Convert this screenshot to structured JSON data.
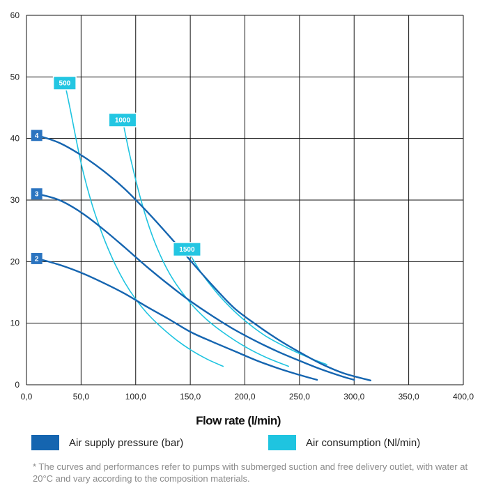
{
  "chart_data": {
    "type": "line",
    "title": "",
    "xlabel": "Flow rate (l/min)",
    "ylabel": "",
    "xlim": [
      0,
      400
    ],
    "ylim": [
      0,
      60
    ],
    "x_ticks": [
      0,
      50,
      100,
      150,
      200,
      250,
      300,
      350,
      400
    ],
    "x_tick_labels": [
      "0,0",
      "50,0",
      "100,0",
      "150,0",
      "200,0",
      "250,0",
      "300,0",
      "350,0",
      "400,0"
    ],
    "y_ticks": [
      0,
      10,
      20,
      30,
      40,
      50,
      60
    ],
    "y_tick_labels": [
      "0",
      "10",
      "20",
      "30",
      "40",
      "50",
      "60"
    ],
    "grid": true,
    "series": [
      {
        "name": "Air supply pressure 2 bar",
        "group": "pressure",
        "tag": "2",
        "color": "#1565b0",
        "x": [
          10,
          30,
          50,
          70,
          90,
          110,
          130,
          150,
          170,
          190,
          210,
          230,
          250,
          266
        ],
        "y": [
          20.5,
          19.5,
          18.2,
          16.6,
          14.8,
          12.7,
          10.7,
          8.6,
          7.0,
          5.5,
          4.0,
          2.7,
          1.6,
          0.8
        ]
      },
      {
        "name": "Air supply pressure 3 bar",
        "group": "pressure",
        "tag": "3",
        "color": "#1565b0",
        "x": [
          10,
          30,
          50,
          70,
          90,
          110,
          130,
          150,
          170,
          190,
          210,
          230,
          250,
          270,
          290,
          300
        ],
        "y": [
          31.0,
          30.0,
          28.0,
          25.3,
          22.3,
          19.2,
          16.3,
          13.6,
          11.2,
          9.0,
          7.1,
          5.4,
          3.9,
          2.5,
          1.3,
          0.8
        ]
      },
      {
        "name": "Air supply pressure 4 bar",
        "group": "pressure",
        "tag": "4",
        "color": "#1565b0",
        "x": [
          10,
          30,
          50,
          70,
          90,
          110,
          130,
          150,
          170,
          190,
          210,
          230,
          250,
          270,
          290,
          315
        ],
        "y": [
          40.5,
          39.3,
          37.3,
          34.8,
          31.8,
          28.2,
          24.3,
          20.2,
          16.2,
          12.5,
          9.8,
          7.4,
          5.3,
          3.4,
          1.9,
          0.7
        ]
      },
      {
        "name": "Air consumption 500 Nl/min",
        "group": "consumption",
        "tag": "500",
        "color": "#1fc4e0",
        "x": [
          35,
          40,
          50,
          60,
          70,
          80,
          90,
          100,
          110,
          120,
          135,
          150,
          165,
          180
        ],
        "y": [
          49.0,
          44.8,
          36.0,
          29.3,
          24.2,
          20.0,
          16.6,
          13.9,
          11.7,
          9.9,
          7.6,
          5.7,
          4.2,
          3.0
        ]
      },
      {
        "name": "Air consumption 1000 Nl/min",
        "group": "consumption",
        "tag": "1000",
        "color": "#1fc4e0",
        "x": [
          88,
          95,
          105,
          115,
          125,
          135,
          150,
          165,
          180,
          200,
          220,
          240
        ],
        "y": [
          43.0,
          37.0,
          29.9,
          24.3,
          20.1,
          16.9,
          13.3,
          10.6,
          8.5,
          6.2,
          4.4,
          3.0
        ]
      },
      {
        "name": "Air consumption 1500 Nl/min",
        "group": "consumption",
        "tag": "1500",
        "color": "#1fc4e0",
        "x": [
          147,
          160,
          175,
          190,
          205,
          220,
          240,
          260,
          275
        ],
        "y": [
          22.0,
          18.2,
          14.8,
          12.0,
          9.7,
          7.8,
          5.9,
          4.3,
          3.3
        ]
      }
    ]
  },
  "legend": {
    "items": [
      {
        "label": "Air supply pressure (bar)",
        "color": "#1565b0"
      },
      {
        "label": "Air consumption (Nl/min)",
        "color": "#1fc4e0"
      }
    ]
  },
  "footnote": "* The curves and performances refer to pumps with submerged suction and free delivery outlet, with water at 20°C and vary according to the composition materials."
}
